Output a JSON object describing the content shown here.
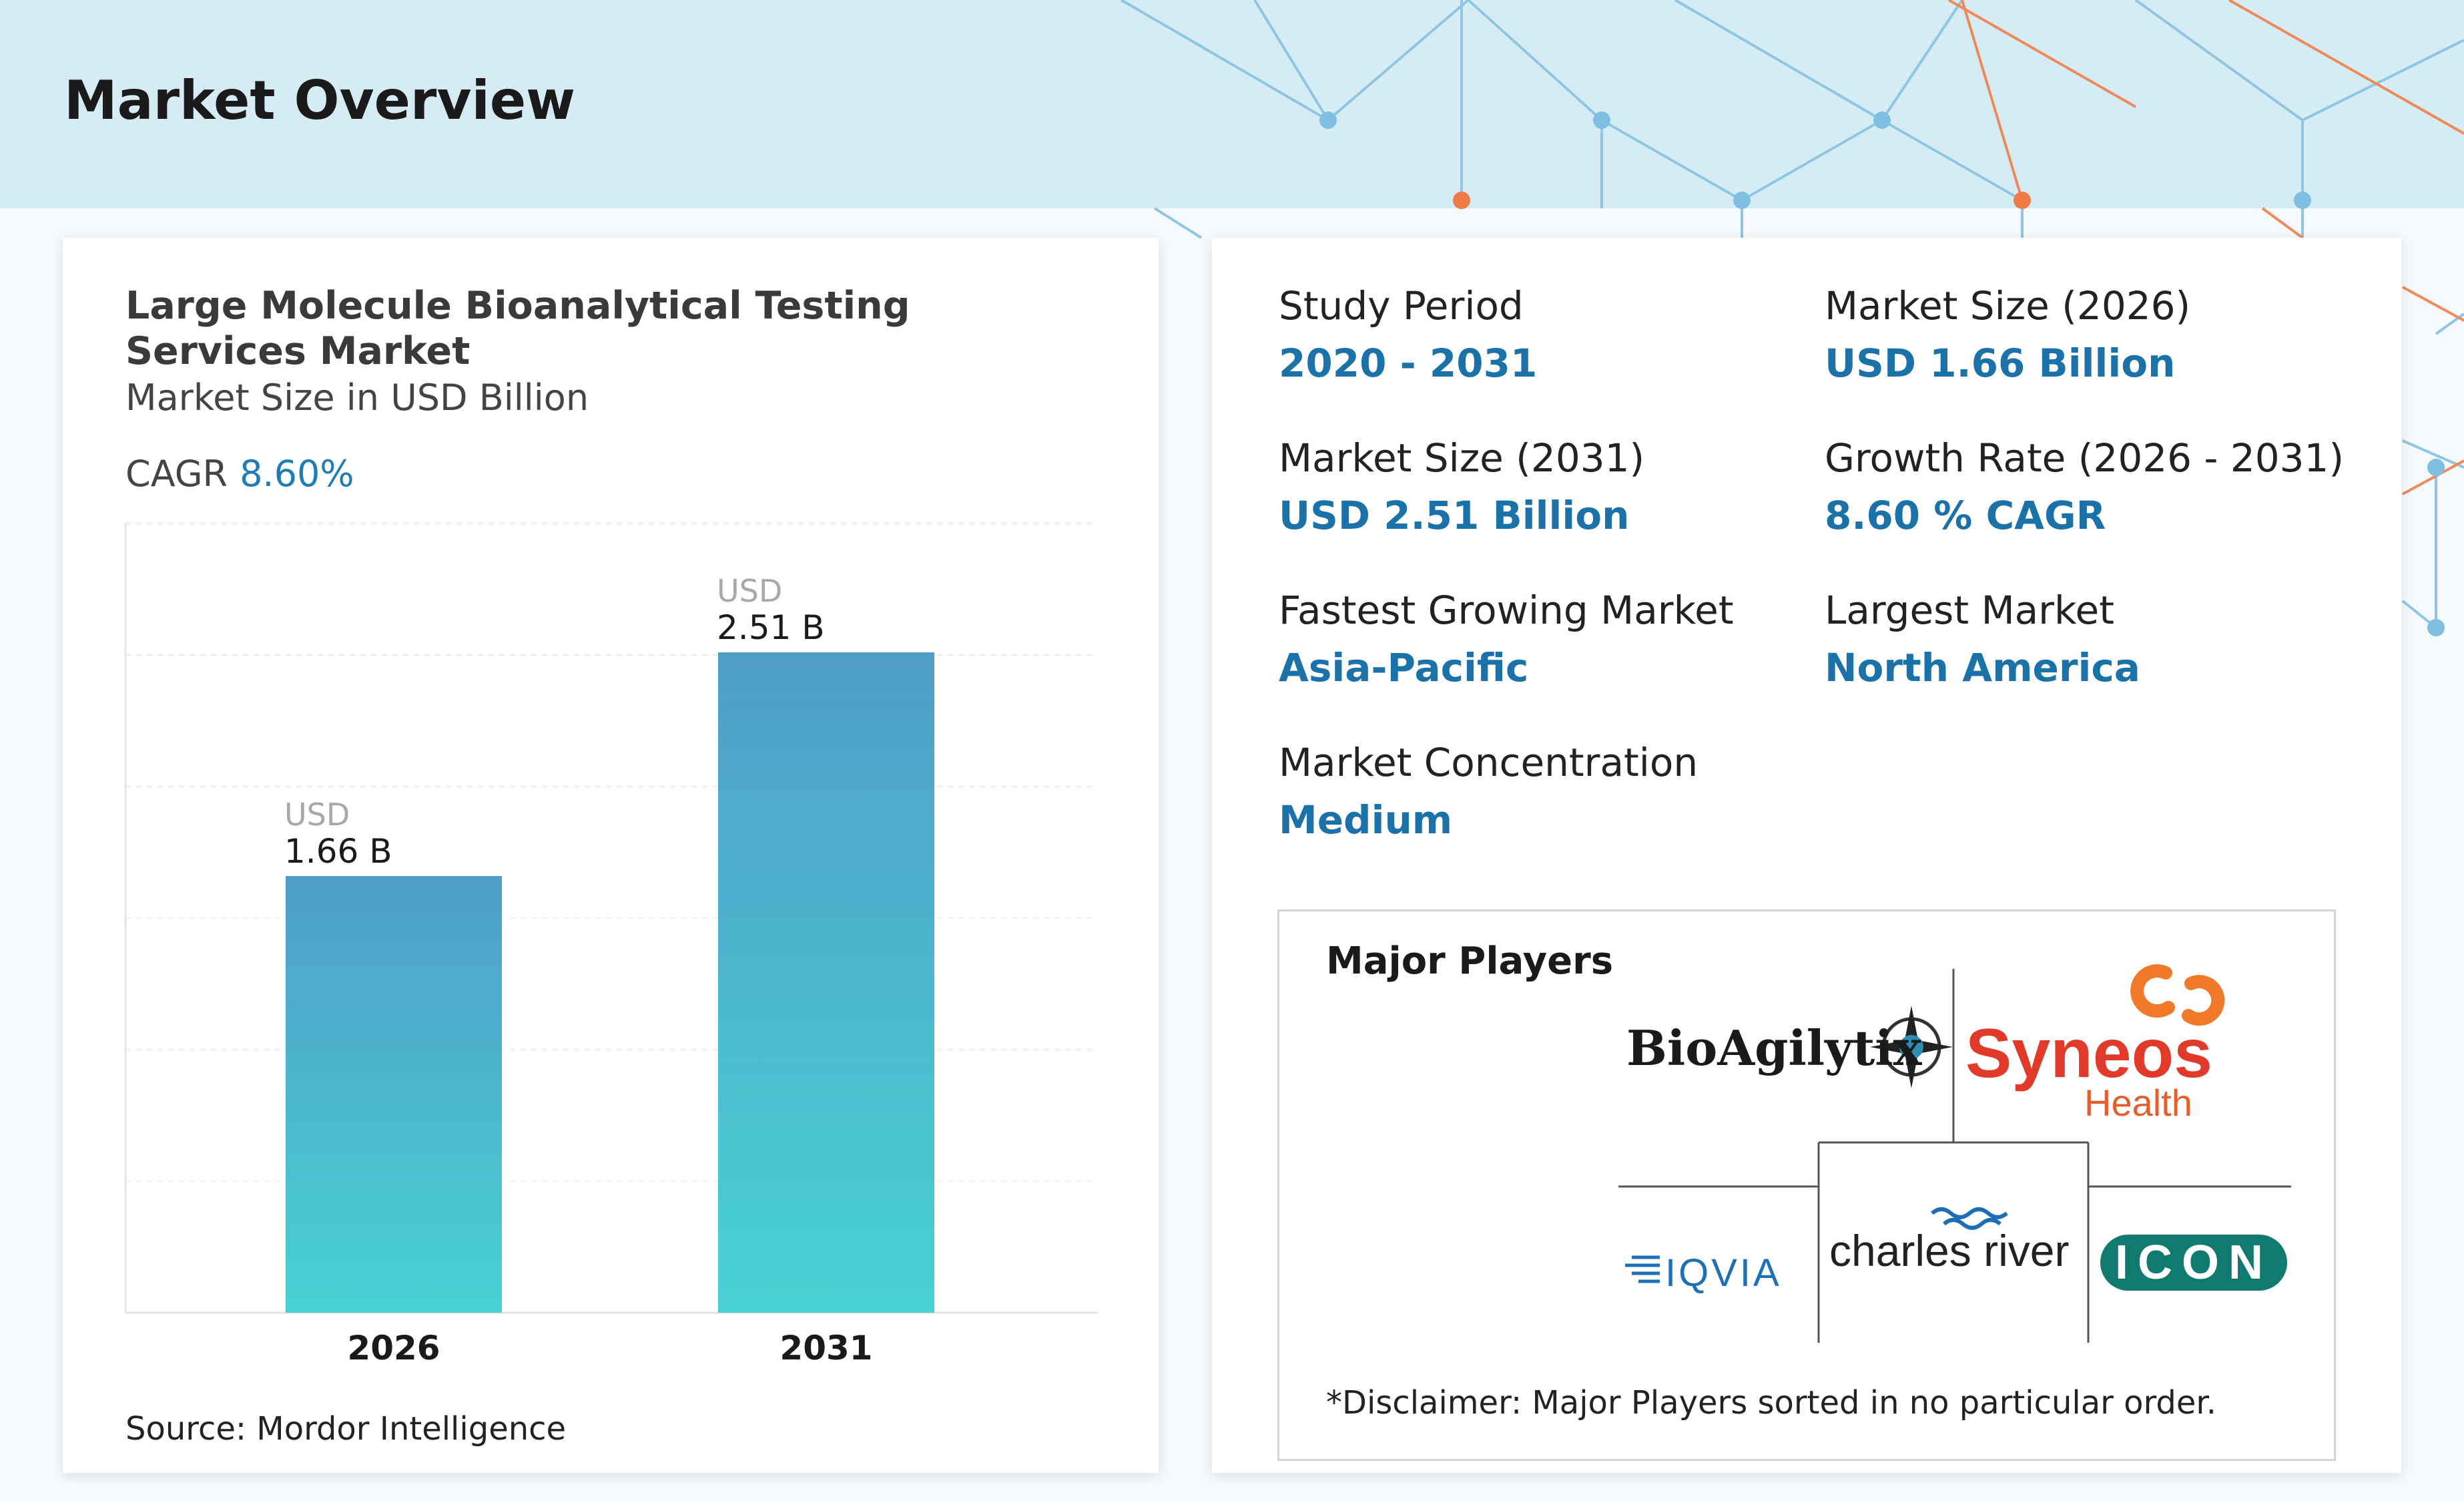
{
  "header": {
    "title": "Market Overview"
  },
  "colors": {
    "accent": "#1b72a8",
    "bar_top": "#4f9ec8",
    "bar_bottom": "#48d1d3",
    "header_bg": "#d6ecf4"
  },
  "left_card": {
    "title": "Large Molecule Bioanalytical Testing Services Market",
    "subtitle": "Market Size in USD Billion",
    "cagr_label": "CAGR",
    "cagr_value": "8.60%",
    "source": "Source: Mordor Intelligence"
  },
  "chart_data": {
    "type": "bar",
    "categories": [
      "2026",
      "2031"
    ],
    "values": [
      1.66,
      2.51
    ],
    "value_labels": [
      {
        "unit": "USD",
        "amount": "1.66 B"
      },
      {
        "unit": "USD",
        "amount": "2.51 B"
      }
    ],
    "title": "Large Molecule Bioanalytical Testing Services Market",
    "subtitle": "Market Size in USD Billion",
    "ylim": [
      0,
      3.0
    ],
    "grid": true
  },
  "stats": [
    {
      "label": "Study Period",
      "value": "2020 - 2031"
    },
    {
      "label": "Market Size (2026)",
      "value": "USD 1.66 Billion"
    },
    {
      "label": "Market Size (2031)",
      "value": "USD 2.51 Billion"
    },
    {
      "label": "Growth Rate (2026 - 2031)",
      "value": "8.60 % CAGR"
    },
    {
      "label": "Fastest Growing Market",
      "value": "Asia-Pacific"
    },
    {
      "label": "Largest Market",
      "value": "North America"
    },
    {
      "label": "Market Concentration",
      "value": "Medium"
    }
  ],
  "players": {
    "title": "Major Players",
    "logos": {
      "bioagilytix": "BioAgilytix",
      "syneos": "Syneos",
      "syneos_sub": "Health",
      "iqvia": "IQVIA",
      "charles_river": "charles river",
      "icon": "ICON"
    },
    "disclaimer": "*Disclaimer: Major Players sorted in no particular order."
  }
}
